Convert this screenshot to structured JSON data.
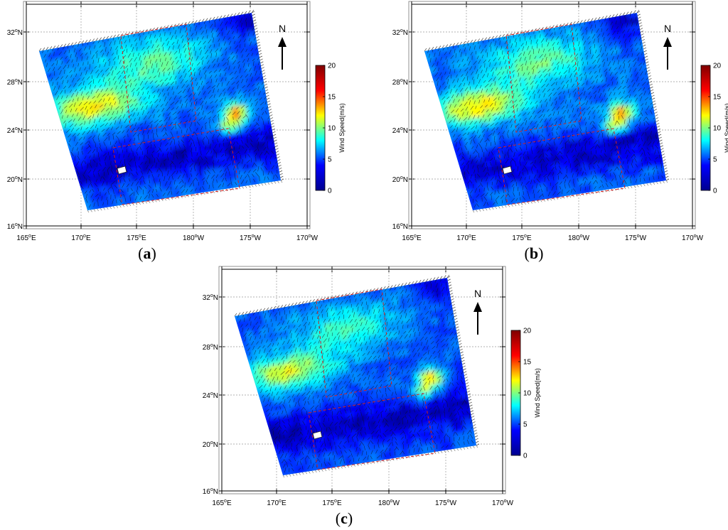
{
  "figure": {
    "panels": [
      {
        "id": "a",
        "caption_open": "(",
        "caption_letter": "a",
        "caption_close": ")"
      },
      {
        "id": "b",
        "caption_open": "(",
        "caption_letter": "b",
        "caption_close": ")"
      },
      {
        "id": "c",
        "caption_open": "(",
        "caption_letter": "c",
        "caption_close": ")"
      }
    ],
    "north_label": "N",
    "lat_labels": [
      {
        "deg": "32",
        "hemi": "N"
      },
      {
        "deg": "28",
        "hemi": "N"
      },
      {
        "deg": "24",
        "hemi": "N"
      },
      {
        "deg": "20",
        "hemi": "N"
      },
      {
        "deg": "16",
        "hemi": "N"
      }
    ],
    "lon_labels": [
      {
        "deg": "165",
        "hemi": "E"
      },
      {
        "deg": "170",
        "hemi": "E"
      },
      {
        "deg": "175",
        "hemi": "E"
      },
      {
        "deg": "180",
        "hemi": "W"
      },
      {
        "deg": "175",
        "hemi": "W"
      },
      {
        "deg": "170",
        "hemi": "W"
      }
    ],
    "colorbar": {
      "label": "Wind Speed(m/s)",
      "ticks": [
        "20",
        "15",
        "10",
        "5",
        "0"
      ],
      "range": [
        0,
        20
      ],
      "colormap": "jet",
      "colors": [
        "#00008f",
        "#0000ff",
        "#00ffff",
        "#ffff00",
        "#ff0000",
        "#800000"
      ]
    },
    "degree_symbol": "o",
    "study_box_color": "#d62020",
    "map_extent": {
      "lat": [
        16,
        33
      ],
      "lon": [
        "165E",
        "170W"
      ]
    }
  }
}
